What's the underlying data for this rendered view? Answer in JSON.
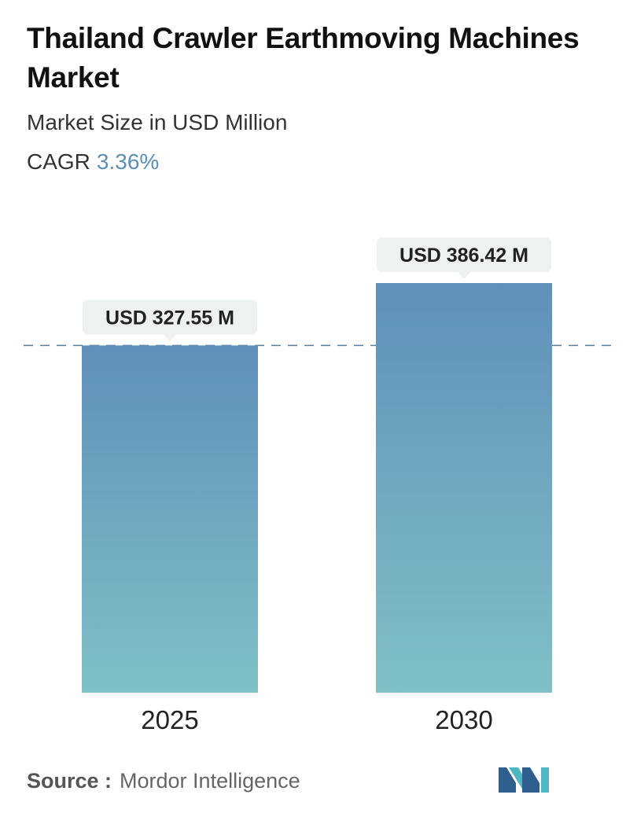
{
  "header": {
    "title": "Thailand Crawler Earthmoving Machines Market",
    "subtitle": "Market Size in USD Million",
    "cagr_label": "CAGR",
    "cagr_value": "3.36%"
  },
  "chart_data": {
    "type": "bar",
    "categories": [
      "2025",
      "2030"
    ],
    "values": [
      327.55,
      386.42
    ],
    "value_labels": [
      "USD 327.55 M",
      "USD 386.42 M"
    ],
    "title": "Thailand Crawler Earthmoving Machines Market",
    "subtitle": "Market Size in USD Million",
    "xlabel": "",
    "ylabel": "",
    "grid": false,
    "reference_line": {
      "value": 327.55,
      "style": "dashed"
    },
    "colors": {
      "bar_top": "#5f90b9",
      "bar_bottom": "#7fc0c6",
      "reference_line": "#5a7f9a",
      "label_bg": "#eef1f1"
    }
  },
  "footer": {
    "source_label": "Source :",
    "source_name": "Mordor Intelligence",
    "logo_icon": "mordor-intelligence-logo-icon"
  }
}
